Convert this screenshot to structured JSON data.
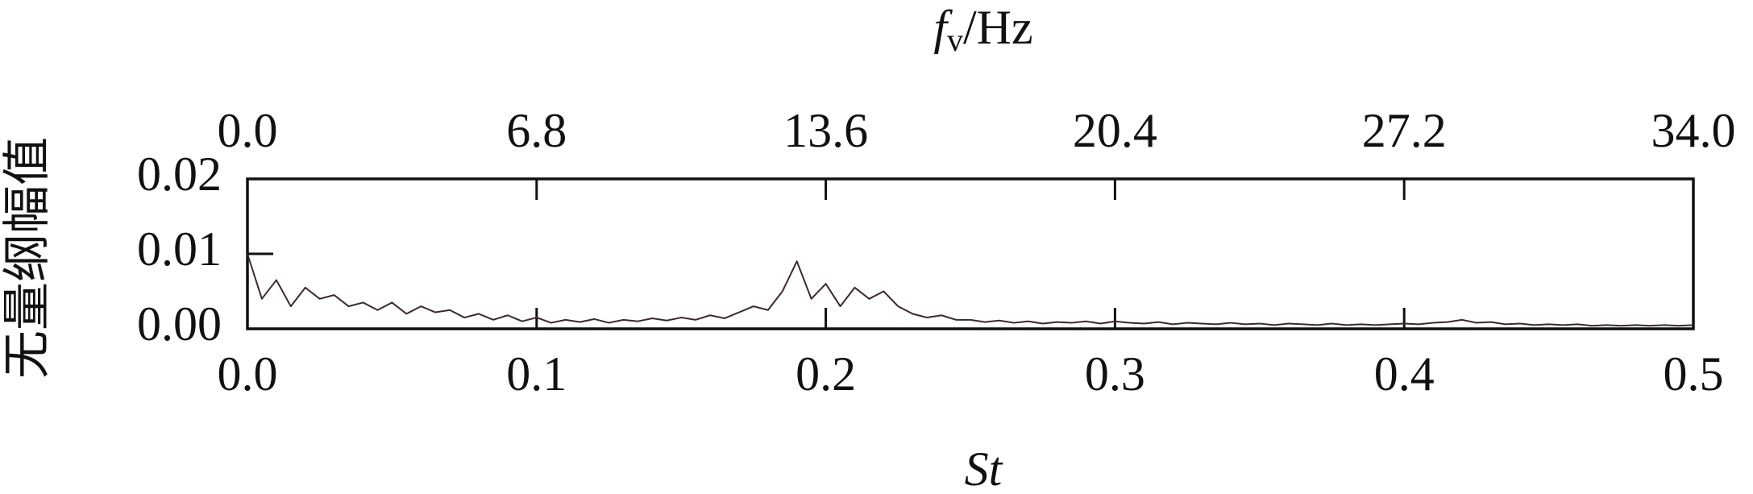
{
  "chart_data": {
    "type": "line",
    "x_label": "St",
    "x2_label": {
      "symbol": "f",
      "subscript": "v",
      "unit": "/Hz"
    },
    "y_label": "无量纲幅值",
    "xlim": [
      0,
      0.5
    ],
    "xticks": [
      {
        "value": 0,
        "label": "0.0"
      },
      0.1,
      0.2,
      0.3,
      0.4,
      0.5
    ],
    "x2lim": [
      0,
      34
    ],
    "x2ticks": [
      {
        "value": 0,
        "label": "0.0"
      },
      6.8,
      13.6,
      20.4,
      27.2,
      {
        "value": 34,
        "label": "34.0"
      }
    ],
    "ylim": [
      0,
      0.02
    ],
    "yticks": [
      {
        "value": 0,
        "label": "0.00"
      },
      0.01,
      0.02
    ],
    "grid": false,
    "x": [
      0,
      0.005,
      0.01,
      0.015,
      0.02,
      0.025,
      0.03,
      0.035,
      0.04,
      0.045,
      0.05,
      0.055,
      0.06,
      0.065,
      0.07,
      0.075,
      0.08,
      0.085,
      0.09,
      0.095,
      0.1,
      0.105,
      0.11,
      0.115,
      0.12,
      0.125,
      0.13,
      0.135,
      0.14,
      0.145,
      0.15,
      0.155,
      0.16,
      0.165,
      0.17,
      0.175,
      0.18,
      0.185,
      0.19,
      0.195,
      0.2,
      0.205,
      0.21,
      0.215,
      0.22,
      0.225,
      0.23,
      0.235,
      0.24,
      0.245,
      0.25,
      0.255,
      0.26,
      0.265,
      0.27,
      0.275,
      0.28,
      0.285,
      0.29,
      0.295,
      0.3,
      0.305,
      0.31,
      0.315,
      0.32,
      0.325,
      0.33,
      0.335,
      0.34,
      0.345,
      0.35,
      0.355,
      0.36,
      0.365,
      0.37,
      0.375,
      0.38,
      0.385,
      0.39,
      0.395,
      0.4,
      0.405,
      0.41,
      0.415,
      0.42,
      0.425,
      0.43,
      0.435,
      0.44,
      0.445,
      0.45,
      0.455,
      0.46,
      0.465,
      0.47,
      0.475,
      0.48,
      0.485,
      0.49,
      0.495,
      0.5
    ],
    "series": [
      {
        "color": "#3a2a2a",
        "values": [
          0.01,
          0.004,
          0.0065,
          0.003,
          0.0055,
          0.004,
          0.0045,
          0.003,
          0.0035,
          0.0025,
          0.0035,
          0.002,
          0.003,
          0.0022,
          0.0025,
          0.0015,
          0.002,
          0.0012,
          0.0018,
          0.001,
          0.0015,
          0.0008,
          0.0012,
          0.0009,
          0.0013,
          0.0008,
          0.0012,
          0.001,
          0.0014,
          0.0011,
          0.0015,
          0.0012,
          0.0018,
          0.0014,
          0.0022,
          0.003,
          0.0025,
          0.005,
          0.009,
          0.004,
          0.006,
          0.003,
          0.0055,
          0.004,
          0.005,
          0.003,
          0.002,
          0.0015,
          0.0018,
          0.0012,
          0.0012,
          0.0009,
          0.0011,
          0.0008,
          0.001,
          0.0007,
          0.0009,
          0.0008,
          0.001,
          0.0007,
          0.001,
          0.0008,
          0.0007,
          0.0009,
          0.0006,
          0.0008,
          0.0007,
          0.0006,
          0.0008,
          0.0006,
          0.0007,
          0.0005,
          0.0007,
          0.0006,
          0.0005,
          0.0007,
          0.0005,
          0.0006,
          0.0005,
          0.0006,
          0.0007,
          0.0006,
          0.0008,
          0.0009,
          0.0012,
          0.0008,
          0.0009,
          0.0006,
          0.0007,
          0.0005,
          0.0006,
          0.0005,
          0.0006,
          0.0004,
          0.0005,
          0.0004,
          0.0005,
          0.0004,
          0.0005,
          0.0004,
          0.0005
        ]
      }
    ]
  }
}
